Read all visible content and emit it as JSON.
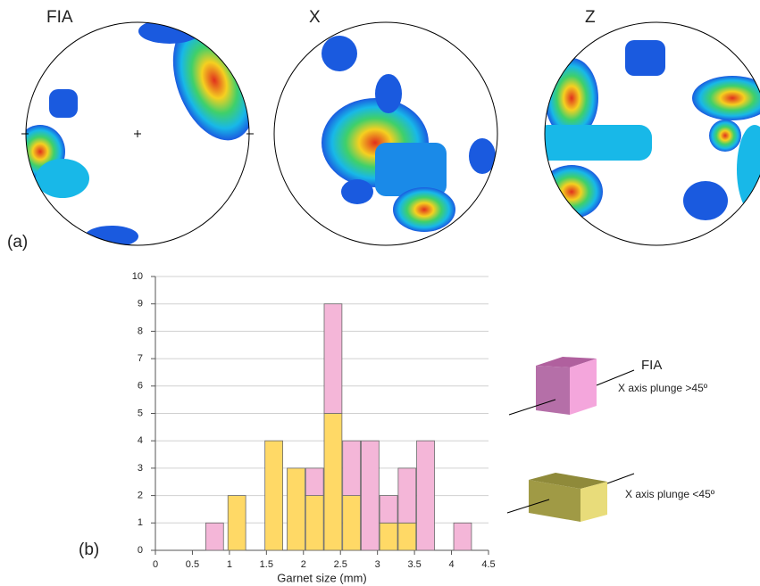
{
  "panel_labels": [
    "(a)",
    "(b)"
  ],
  "stereonets": [
    "FIA",
    "X",
    "Z"
  ],
  "chart_data": {
    "type": "bar",
    "stacked": true,
    "x": [
      0.8,
      1.1,
      1.6,
      1.9,
      2.15,
      2.4,
      2.65,
      2.9,
      3.15,
      3.4,
      3.65,
      4.15
    ],
    "series": [
      {
        "name": "X axis plunge <45º",
        "color": "#ffd966",
        "values": [
          null,
          2,
          4,
          3,
          2,
          5,
          2,
          null,
          1,
          1,
          null,
          null
        ]
      },
      {
        "name": "X axis plunge >45º",
        "color": "#f4b6d8",
        "values": [
          1,
          null,
          null,
          null,
          1,
          4,
          2,
          4,
          1,
          2,
          4,
          1
        ]
      }
    ],
    "legend_annotation": "FIA",
    "xlabel": "Garnet size (mm)",
    "xlim": [
      0,
      4.5
    ],
    "xticks": [
      0,
      0.5,
      1,
      1.5,
      2,
      2.5,
      3,
      3.5,
      4,
      4.5
    ],
    "ylim": [
      0,
      10
    ],
    "yticks": [
      0,
      1,
      2,
      3,
      4,
      5,
      6,
      7,
      8,
      9,
      10
    ],
    "grid": true
  }
}
